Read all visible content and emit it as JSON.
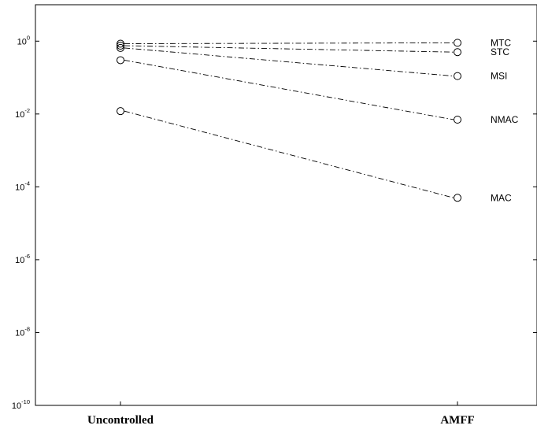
{
  "chart_data": {
    "type": "line",
    "categories": [
      "Uncontrolled",
      "AMFF"
    ],
    "y_scale": "log",
    "ylim": [
      1e-10,
      10
    ],
    "y_ticks": [
      {
        "value": 1,
        "base": "10",
        "exp": "0"
      },
      {
        "value": 0.01,
        "base": "10",
        "exp": "-2"
      },
      {
        "value": 0.0001,
        "base": "10",
        "exp": "-4"
      },
      {
        "value": 1e-06,
        "base": "10",
        "exp": "-6"
      },
      {
        "value": 1e-08,
        "base": "10",
        "exp": "-8"
      },
      {
        "value": 1e-10,
        "base": "10",
        "exp": "-10"
      }
    ],
    "series": [
      {
        "name": "MTC",
        "values": [
          0.85,
          0.9
        ]
      },
      {
        "name": "STC",
        "values": [
          0.75,
          0.5
        ]
      },
      {
        "name": "MSI",
        "values": [
          0.65,
          0.11
        ]
      },
      {
        "name": "NMAC",
        "values": [
          0.3,
          0.007
        ]
      },
      {
        "name": "MAC",
        "values": [
          0.012,
          5e-05
        ]
      }
    ],
    "marker": "open-circle",
    "line_style": "dash-dot",
    "legend": "inline labels right of AMFF points",
    "grid": false
  }
}
